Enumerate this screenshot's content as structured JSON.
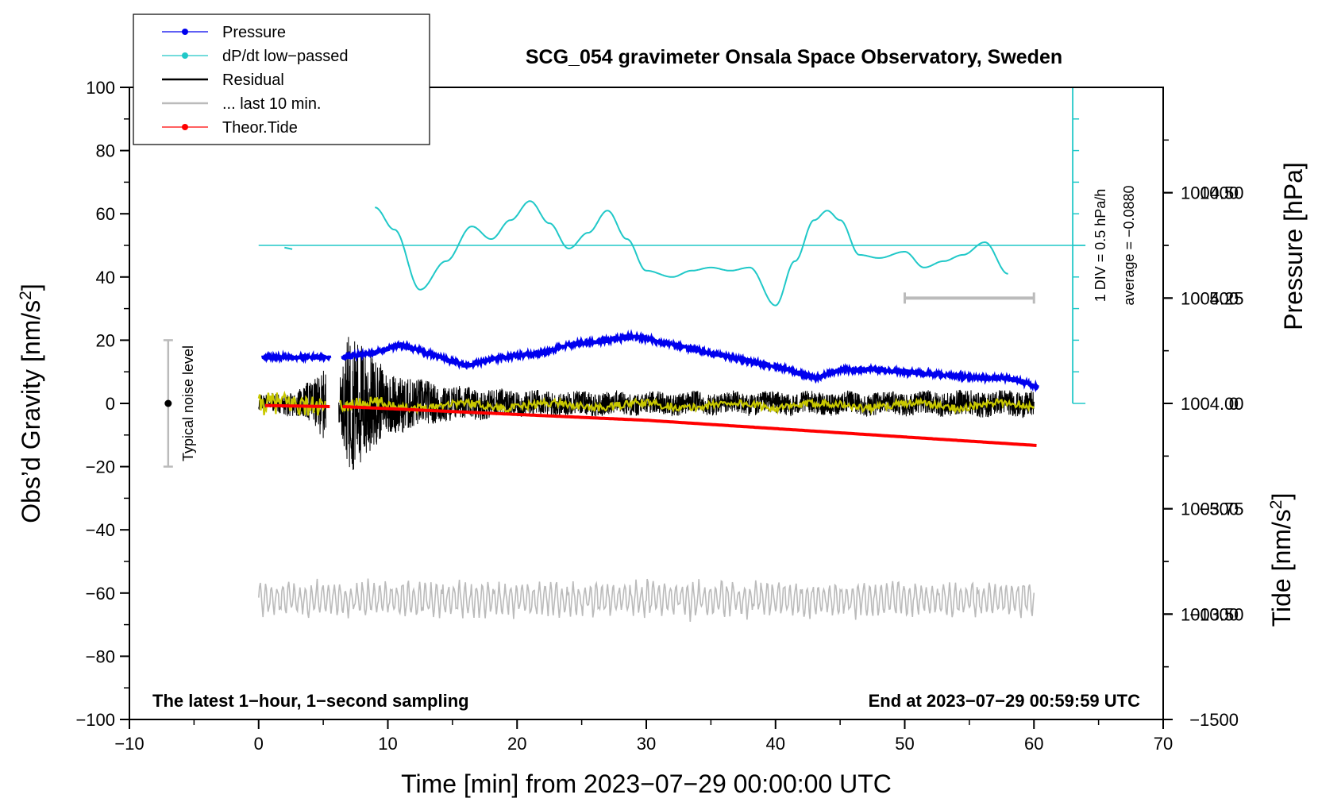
{
  "chart_data": {
    "type": "line",
    "title": "SCG_054 gravimeter Onsala Space Observatory, Sweden",
    "xlabel": "Time [min] from 2023−07−29 00:00:00 UTC",
    "ylabel_left": "Obs’d Gravity [nm/s²]",
    "ylabel_right_top": "Pressure [hPa]",
    "ylabel_right_bottom": "Tide [nm/s²]",
    "xlim": [
      -10,
      70
    ],
    "ylim": [
      -100,
      100
    ],
    "pressure_lim": [
      1003.25,
      1004.75
    ],
    "tide_lim": [
      -1500,
      1500
    ],
    "x_ticks": [
      "−10",
      "0",
      "10",
      "20",
      "30",
      "40",
      "50",
      "60",
      "70"
    ],
    "y_ticks": [
      "100",
      "80",
      "60",
      "40",
      "20",
      "0",
      "−20",
      "−40",
      "−60",
      "−80",
      "−100"
    ],
    "pressure_ticks": [
      "1004.50",
      "1004.25",
      "1004.00",
      "1003.75",
      "1003.50"
    ],
    "tide_ticks": [
      "1000",
      "500",
      "0",
      "−500",
      "−1000",
      "−1500"
    ],
    "legend": {
      "placement": "top-left",
      "entries": [
        {
          "label": "Pressure",
          "color": "#0000ee",
          "marker": true
        },
        {
          "label": "dP/dt low−passed",
          "color": "#20c8c8",
          "marker": true
        },
        {
          "label": "Residual",
          "color": "#000000",
          "marker": false
        },
        {
          "label": "... last 10 min.",
          "color": "#bbbbbb",
          "marker": false
        },
        {
          "label": "Theor.Tide",
          "color": "#ff0000",
          "marker": true
        }
      ]
    },
    "series": [
      {
        "name": "Pressure",
        "unit": "hPa",
        "color": "#0000ee",
        "x": [
          0.3,
          5.5,
          6.5,
          9,
          11,
          13,
          16,
          19,
          22,
          24,
          27,
          29,
          32,
          35,
          38,
          41,
          43,
          45,
          48,
          52,
          56,
          58,
          60.3
        ],
        "values": [
          1004.11,
          1004.11,
          1004.11,
          1004.12,
          1004.14,
          1004.12,
          1004.09,
          1004.11,
          1004.12,
          1004.14,
          1004.15,
          1004.16,
          1004.14,
          1004.12,
          1004.1,
          1004.08,
          1004.06,
          1004.08,
          1004.08,
          1004.07,
          1004.06,
          1004.06,
          1004.04
        ]
      },
      {
        "name": "dP/dt low−passed",
        "unit": "nm/s² plot scale",
        "color": "#20c8c8",
        "x": [
          9,
          10.5,
          12.5,
          14.5,
          16.5,
          18,
          19.5,
          21,
          22.5,
          24,
          25.5,
          27,
          28.5,
          30,
          32,
          33.5,
          35,
          36.5,
          38,
          40,
          41.5,
          43,
          44,
          45,
          46.5,
          48,
          50,
          51.5,
          53,
          54.5,
          56.2,
          58
        ],
        "values": [
          62,
          55,
          36,
          45,
          56,
          52,
          58,
          64,
          57,
          49,
          54,
          61,
          52,
          42,
          40,
          42,
          43,
          42,
          43,
          31,
          45,
          58,
          61,
          58,
          47,
          46,
          48,
          43,
          45,
          47,
          51,
          41
        ]
      },
      {
        "name": "Residual",
        "unit": "nm/s²",
        "color": "#000000",
        "x_range": [
          0,
          60
        ],
        "gap": [
          5.2,
          6.2
        ],
        "envelope": {
          "x": [
            0,
            3,
            4.5,
            5.2,
            6.2,
            7,
            8,
            9,
            10,
            12,
            14,
            16,
            18,
            20,
            30,
            40,
            50,
            55,
            60
          ],
          "amplitude": [
            2.5,
            4,
            8,
            12,
            6,
            22,
            20,
            14,
            10,
            8,
            6,
            5,
            4.5,
            4,
            3.5,
            3.5,
            3.5,
            4,
            4
          ]
        }
      },
      {
        "name": "... last 10 min.",
        "unit": "nm/s²",
        "color": "#bbbbbb",
        "x_range": [
          0,
          60
        ],
        "baseline": -62,
        "amplitude": 5
      },
      {
        "name": "Theor.Tide",
        "unit": "nm/s²",
        "color": "#ff0000",
        "x": [
          0.5,
          5.5,
          6.5,
          30,
          60.3
        ],
        "values": [
          -10,
          -15,
          -15,
          -80,
          -200
        ],
        "gap": [
          5.5,
          6.5
        ]
      },
      {
        "name": "Smoothed residual",
        "unit": "nm/s²",
        "color": "#c8c800",
        "x_range": [
          0,
          60
        ]
      }
    ],
    "noise_bar": {
      "label": "Typical noise level",
      "x": -7,
      "center": 0,
      "half_range": 20
    },
    "scale_bar": {
      "from": 50,
      "to": 60,
      "tide_value": 500
    },
    "dpdt_scale": {
      "label_1": "1 DIV = 0.5 hPa/h",
      "label_2": "average = −0.0880",
      "x": 63,
      "from": 0,
      "to": 100,
      "zero_line": 50
    },
    "footer_left": "The latest 1−hour, 1−second sampling",
    "footer_right": "End at 2023−07−29 00:59:59 UTC"
  }
}
